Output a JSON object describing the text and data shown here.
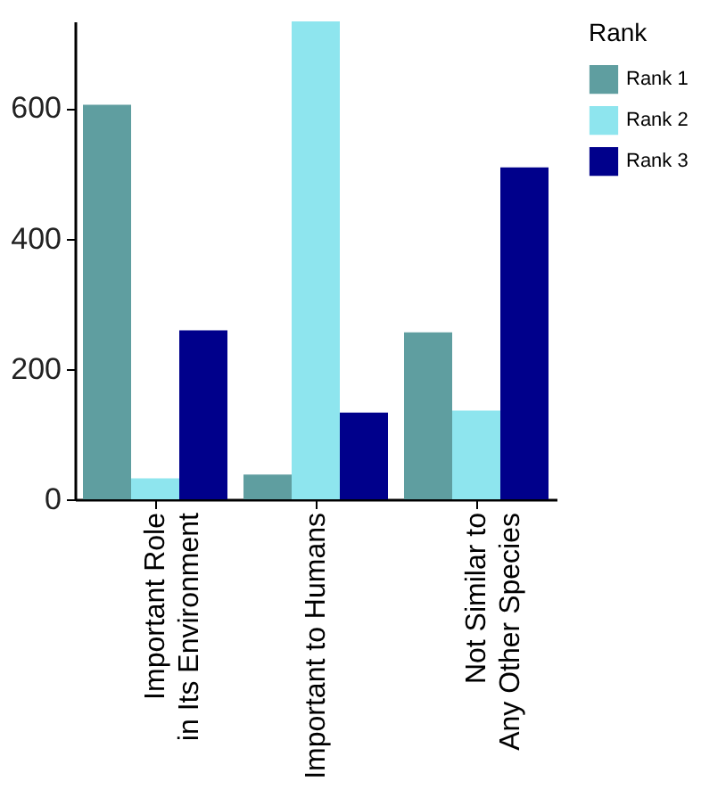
{
  "chart_data": {
    "type": "bar",
    "categories": [
      "Important Role\nin Its Environment",
      "Important to Humans",
      "Not Similar to\nAny Other Species"
    ],
    "series": [
      {
        "name": "Rank 1",
        "color": "#5f9ea0",
        "values": [
          605,
          38,
          256
        ]
      },
      {
        "name": "Rank 2",
        "color": "#8ee5ee",
        "values": [
          32,
          733,
          136
        ]
      },
      {
        "name": "Rank 3",
        "color": "#00008b",
        "values": [
          259,
          133,
          509
        ]
      }
    ],
    "legend_title": "Rank",
    "legend": "right",
    "grid": false,
    "ylim": [
      0,
      733
    ],
    "yticks": [
      0,
      200,
      400,
      600
    ]
  }
}
